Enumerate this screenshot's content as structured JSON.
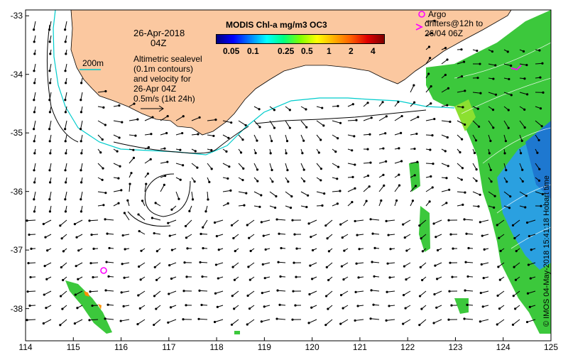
{
  "title": {
    "date": "26-Apr-2018",
    "time": "04Z"
  },
  "colorbar": {
    "title": "MODIS Chl-a mg/m3 OC3",
    "ticks": [
      "0.05",
      "0.1",
      "0.25",
      "0.5",
      "1",
      "2",
      "4"
    ]
  },
  "legend": {
    "contour_label": "200m",
    "description_lines": [
      "Altimetric sealevel",
      "(0.1m contours)",
      "and velocity for",
      "26-Apr 04Z",
      "0.5m/s (1kt 24h)"
    ],
    "argo_label": "Argo",
    "drifter_lines": [
      "drifters@12h to",
      "26/04 06Z"
    ]
  },
  "axes": {
    "lon_ticks": [
      "114",
      "115",
      "116",
      "117",
      "118",
      "119",
      "120",
      "121",
      "122",
      "123",
      "124",
      "125"
    ],
    "lat_ticks": [
      "-33",
      "-34",
      "-35",
      "-36",
      "-37",
      "-38"
    ],
    "lon_range": [
      114,
      125
    ],
    "lat_range": [
      -38.55,
      -32.9
    ]
  },
  "credit": "© IMOS 04-May-2018 15:41:18 Hobart time",
  "colors": {
    "land": "#fbc8a0",
    "isobath": "#00cccc",
    "argo": "#ff00ff",
    "chl_high": "#33cc33",
    "chl_low": "#2aa0e0"
  }
}
